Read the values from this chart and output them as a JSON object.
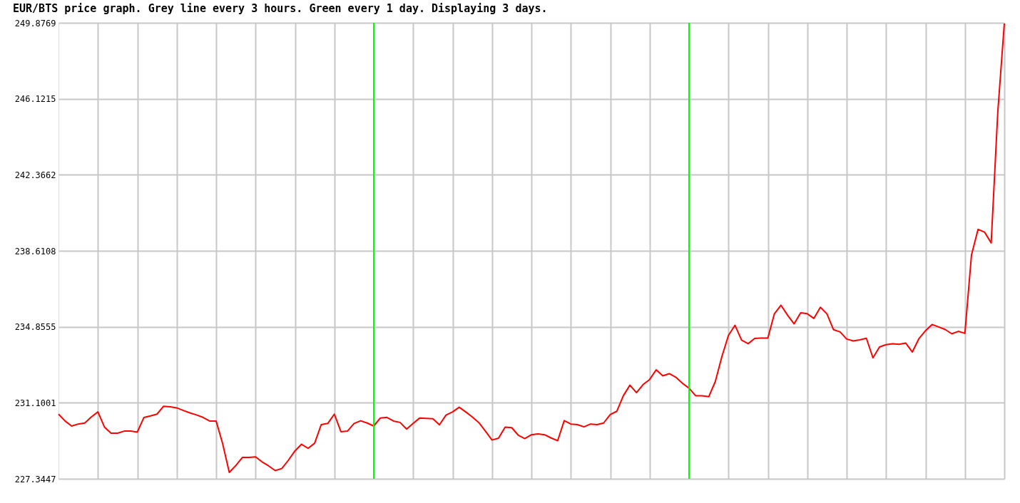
{
  "chart_data": {
    "type": "line",
    "title": "EUR/BTS price graph. Grey line every 3 hours. Green every 1 day. Displaying 3 days.",
    "categories": [
      null,
      null,
      null,
      null,
      null,
      null,
      null,
      null,
      null,
      null,
      null,
      null,
      null,
      null,
      null,
      null,
      null,
      null,
      null,
      null,
      null,
      null,
      null,
      null,
      null,
      null,
      null,
      null,
      null,
      null,
      null,
      null,
      null,
      null,
      null,
      null,
      null,
      null,
      null,
      null,
      null,
      null,
      null,
      null,
      null,
      null,
      null,
      null,
      null,
      null,
      null,
      null,
      null,
      null,
      null,
      null,
      null,
      null,
      null,
      null,
      null,
      null,
      null,
      null,
      null,
      null,
      null,
      null,
      null,
      null,
      null,
      null,
      null,
      null,
      null,
      null,
      null,
      null,
      null,
      null,
      null,
      null,
      null,
      null,
      null,
      null,
      null,
      null,
      null,
      null,
      null,
      null,
      null,
      null,
      null,
      null,
      null,
      null,
      null,
      null,
      null,
      null,
      null,
      null,
      null,
      null,
      null,
      null,
      null,
      null,
      null,
      null,
      null,
      null,
      null,
      null,
      null,
      null,
      null,
      null,
      null,
      null,
      null,
      null,
      null,
      null,
      null,
      null,
      null,
      null,
      null,
      null,
      null,
      null,
      null,
      null,
      null,
      null,
      null,
      null,
      null,
      null,
      null,
      null,
      null
    ],
    "series": [
      {
        "color": "#ff0000",
        "values": [
          230.54,
          230.2,
          229.95,
          230.05,
          230.1,
          230.4,
          230.65,
          229.9,
          229.6,
          229.6,
          229.7,
          229.7,
          229.65,
          230.37,
          230.45,
          230.54,
          230.93,
          230.9,
          230.85,
          230.72,
          230.6,
          230.5,
          230.38,
          230.2,
          230.2,
          229.07,
          227.66,
          228.0,
          228.4,
          228.4,
          228.43,
          228.18,
          227.98,
          227.75,
          227.85,
          228.26,
          228.72,
          229.05,
          228.85,
          229.1,
          230.02,
          230.08,
          230.54,
          229.67,
          229.7,
          230.08,
          230.21,
          230.1,
          229.95,
          230.35,
          230.38,
          230.2,
          230.13,
          229.8,
          230.08,
          230.35,
          230.33,
          230.31,
          230.01,
          230.49,
          230.65,
          230.88,
          230.65,
          230.4,
          230.12,
          229.7,
          229.26,
          229.35,
          229.9,
          229.87,
          229.5,
          229.33,
          229.52,
          229.56,
          229.52,
          229.36,
          229.23,
          230.22,
          230.05,
          230.02,
          229.91,
          230.05,
          230.02,
          230.1,
          230.52,
          230.68,
          231.45,
          231.97,
          231.6,
          232.0,
          232.25,
          232.73,
          232.43,
          232.54,
          232.36,
          232.06,
          231.82,
          231.45,
          231.45,
          231.4,
          232.15,
          233.38,
          234.43,
          234.93,
          234.2,
          234.02,
          234.28,
          234.3,
          234.3,
          235.5,
          235.92,
          235.43,
          235.0,
          235.55,
          235.5,
          235.27,
          235.82,
          235.49,
          234.71,
          234.6,
          234.25,
          234.16,
          234.21,
          234.29,
          233.32,
          233.86,
          233.97,
          234.02,
          233.99,
          234.05,
          233.61,
          234.27,
          234.66,
          234.97,
          234.85,
          234.72,
          234.51,
          234.63,
          234.53,
          238.4,
          239.67,
          239.53,
          239.0,
          245.43,
          249.84
        ]
      }
    ],
    "ylim": [
      227.3447,
      249.8769
    ],
    "yticks": [
      227.3447,
      231.1001,
      234.8555,
      238.6108,
      242.3662,
      246.1215,
      249.8769
    ],
    "grid": true,
    "tick_labels": "y"
  }
}
